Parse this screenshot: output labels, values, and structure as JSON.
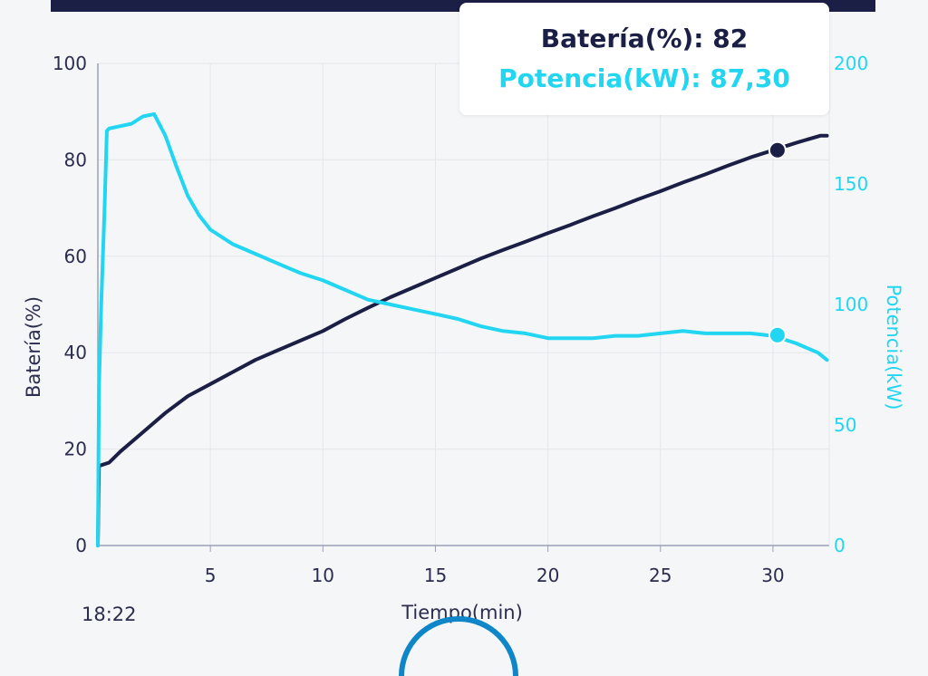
{
  "chart_data": {
    "type": "line",
    "xlabel": "Tiempo(min)",
    "ylabel_left": "Batería(%)",
    "ylabel_right": "Potencia(kW)",
    "xlim": [
      0,
      32.5
    ],
    "ylim_left": [
      0,
      100
    ],
    "ylim_right": [
      0,
      200
    ],
    "xticks": [
      5,
      10,
      15,
      20,
      25,
      30
    ],
    "yticks_left": [
      0,
      20,
      40,
      60,
      80,
      100
    ],
    "yticks_right": [
      0,
      50,
      100,
      150,
      200
    ],
    "grid": true,
    "series": [
      {
        "name": "Batería(%)",
        "axis": "left",
        "color": "#1b1f45",
        "x": [
          0,
          0.05,
          0.5,
          1,
          2,
          3,
          4,
          5,
          6,
          7,
          8,
          9,
          10,
          11,
          12,
          13,
          14,
          15,
          16,
          17,
          18,
          19,
          20,
          21,
          22,
          23,
          24,
          25,
          26,
          27,
          28,
          29,
          30,
          31,
          32.1,
          32.4
        ],
        "values": [
          0,
          16.5,
          17.2,
          19.5,
          23.5,
          27.5,
          31,
          33.5,
          36,
          38.5,
          40.5,
          42.5,
          44.5,
          47,
          49.3,
          51.5,
          53.5,
          55.5,
          57.5,
          59.5,
          61.3,
          63,
          64.8,
          66.5,
          68.3,
          70,
          71.8,
          73.5,
          75.3,
          77,
          78.8,
          80.5,
          82,
          83.5,
          85,
          85
        ]
      },
      {
        "name": "Potencia(kW)",
        "axis": "right",
        "color": "#22d6f2",
        "x": [
          0,
          0.05,
          0.15,
          0.3,
          0.4,
          0.5,
          1,
          1.5,
          2,
          2.5,
          3,
          3.5,
          4,
          4.5,
          5,
          6,
          7,
          8,
          9,
          10,
          11,
          12,
          13,
          14,
          15,
          16,
          17,
          18,
          19,
          20,
          21,
          22,
          23,
          24,
          25,
          26,
          27,
          28,
          29,
          30,
          31,
          32,
          32.4
        ],
        "values": [
          0,
          65,
          100,
          140,
          172,
          173,
          174,
          175,
          178,
          179,
          170,
          157,
          145,
          137,
          131,
          125,
          121,
          117,
          113,
          110,
          106,
          102,
          100,
          98,
          96,
          94,
          91,
          89,
          88,
          86,
          86,
          86,
          87,
          87,
          88,
          89,
          88,
          88,
          88,
          87,
          84,
          80,
          77
        ]
      }
    ],
    "markers": [
      {
        "series": "Batería(%)",
        "x": 30.2,
        "value": 82
      },
      {
        "series": "Potencia(kW)",
        "x": 30.2,
        "value": 87.3
      }
    ],
    "tooltip": {
      "battery_text": "Batería(%): 82",
      "power_text": "Potencia(kW): 87,30"
    }
  },
  "status": {
    "time": "18:22"
  }
}
